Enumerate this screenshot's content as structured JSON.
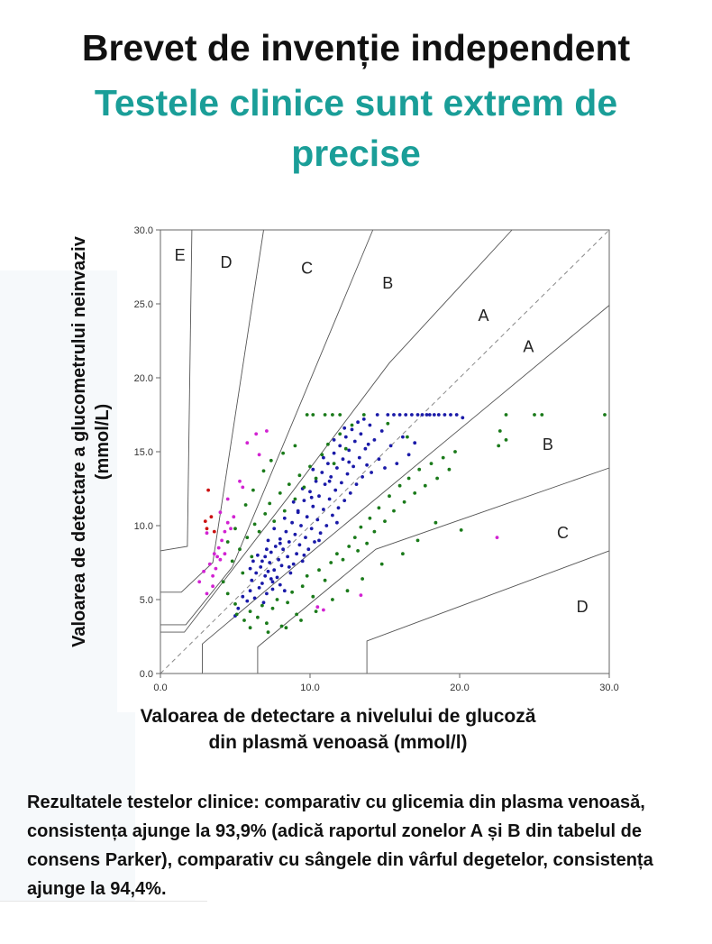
{
  "header": {
    "title": "Brevet de invenție independent",
    "subtitle": "Testele clinice sunt extrem de precise"
  },
  "footnote": "Rezultatele testelor clinice: comparativ cu glicemia din plasma venoasă, consistența ajunge la 93,9% (adică raportul zonelor A și B din tabelul de consens Parker), comparativ cu sângele din vârful degetelor, consistența ajunge la 94,4%.",
  "chart_data": {
    "type": "scatter",
    "title": "",
    "xlabel": "Valoarea de detectare a nivelului de glucoză din plasmă venoasă (mmol/l)",
    "ylabel": "Valoarea de detectare a glucometrului neinvaziv (mmol/L)",
    "xlim": [
      0,
      30
    ],
    "ylim": [
      0,
      30
    ],
    "x_ticks": [
      "0.0",
      "10.0",
      "20.0",
      "30.0"
    ],
    "y_ticks": [
      "0.0",
      "5.0",
      "10.0",
      "15.0",
      "20.0",
      "25.0",
      "30.0"
    ],
    "grid": false,
    "legend": "none",
    "identity_line": true,
    "zone_labels": [
      {
        "text": "E",
        "x": 1.3,
        "y": 28.3
      },
      {
        "text": "D",
        "x": 4.4,
        "y": 27.8
      },
      {
        "text": "C",
        "x": 9.8,
        "y": 27.4
      },
      {
        "text": "B",
        "x": 15.2,
        "y": 26.4
      },
      {
        "text": "A",
        "x": 21.6,
        "y": 24.2
      },
      {
        "text": "A",
        "x": 24.6,
        "y": 22.1
      },
      {
        "text": "B",
        "x": 25.9,
        "y": 15.5
      },
      {
        "text": "C",
        "x": 26.9,
        "y": 9.5
      },
      {
        "text": "D",
        "x": 28.2,
        "y": 4.5
      }
    ],
    "zone_boundaries": [
      [
        [
          0,
          8.3
        ],
        [
          1.8,
          8.6
        ],
        [
          2.1,
          30
        ]
      ],
      [
        [
          0,
          5.5
        ],
        [
          1.4,
          5.5
        ],
        [
          3.5,
          7.5
        ],
        [
          6.9,
          30
        ]
      ],
      [
        [
          0,
          3.3
        ],
        [
          1.7,
          3.3
        ],
        [
          4.8,
          7.2
        ],
        [
          14.2,
          30
        ]
      ],
      [
        [
          0,
          2.8
        ],
        [
          1.6,
          2.8
        ],
        [
          8.6,
          12.0
        ],
        [
          15.3,
          21.0
        ],
        [
          23.5,
          30
        ]
      ],
      [
        [
          0,
          0
        ],
        [
          30,
          30
        ]
      ],
      [
        [
          2.8,
          0
        ],
        [
          2.8,
          2.0
        ],
        [
          10.2,
          8.3
        ],
        [
          30,
          24.9
        ]
      ],
      [
        [
          6.5,
          0
        ],
        [
          6.5,
          1.8
        ],
        [
          14.4,
          8.4
        ],
        [
          30,
          13.9
        ]
      ],
      [
        [
          13.8,
          0
        ],
        [
          13.8,
          2.2
        ],
        [
          30,
          8.3
        ]
      ]
    ],
    "series": [
      {
        "color": "#1a1aa8",
        "points": [
          [
            5.0,
            3.9
          ],
          [
            5.2,
            4.4
          ],
          [
            5.5,
            5.2
          ],
          [
            5.8,
            4.9
          ],
          [
            6.0,
            5.6
          ],
          [
            6.1,
            6.3
          ],
          [
            6.3,
            5.1
          ],
          [
            6.4,
            6.8
          ],
          [
            6.6,
            5.8
          ],
          [
            6.7,
            7.2
          ],
          [
            6.8,
            6.1
          ],
          [
            6.9,
            4.8
          ],
          [
            7.0,
            6.6
          ],
          [
            7.0,
            7.9
          ],
          [
            7.1,
            5.4
          ],
          [
            7.2,
            6.9
          ],
          [
            7.3,
            7.5
          ],
          [
            7.4,
            8.2
          ],
          [
            7.5,
            6.2
          ],
          [
            7.5,
            5.7
          ],
          [
            7.6,
            7.0
          ],
          [
            7.7,
            8.6
          ],
          [
            7.8,
            6.5
          ],
          [
            7.9,
            7.7
          ],
          [
            8.0,
            9.1
          ],
          [
            8.0,
            6.0
          ],
          [
            8.1,
            7.3
          ],
          [
            8.2,
            8.4
          ],
          [
            8.3,
            5.6
          ],
          [
            8.4,
            9.6
          ],
          [
            8.5,
            7.9
          ],
          [
            8.6,
            8.9
          ],
          [
            8.7,
            6.8
          ],
          [
            8.8,
            10.2
          ],
          [
            8.9,
            7.4
          ],
          [
            9.0,
            9.4
          ],
          [
            9.1,
            8.1
          ],
          [
            9.2,
            11.0
          ],
          [
            9.3,
            8.7
          ],
          [
            9.4,
            10.0
          ],
          [
            9.5,
            7.6
          ],
          [
            9.6,
            11.7
          ],
          [
            9.7,
            9.2
          ],
          [
            9.8,
            10.6
          ],
          [
            9.9,
            8.4
          ],
          [
            10.0,
            12.3
          ],
          [
            10.1,
            9.8
          ],
          [
            10.2,
            11.3
          ],
          [
            10.3,
            8.9
          ],
          [
            10.4,
            13.0
          ],
          [
            10.5,
            10.4
          ],
          [
            10.6,
            12.0
          ],
          [
            10.7,
            9.5
          ],
          [
            10.8,
            13.6
          ],
          [
            10.9,
            11.1
          ],
          [
            11.0,
            12.8
          ],
          [
            11.1,
            10.0
          ],
          [
            11.2,
            14.2
          ],
          [
            11.3,
            11.8
          ],
          [
            11.4,
            13.3
          ],
          [
            11.5,
            10.7
          ],
          [
            11.6,
            14.9
          ],
          [
            11.7,
            12.4
          ],
          [
            11.8,
            13.9
          ],
          [
            11.9,
            11.2
          ],
          [
            12.0,
            15.4
          ],
          [
            12.1,
            12.9
          ],
          [
            12.2,
            14.5
          ],
          [
            12.3,
            11.7
          ],
          [
            12.4,
            16.0
          ],
          [
            12.5,
            13.5
          ],
          [
            12.6,
            15.1
          ],
          [
            12.7,
            12.2
          ],
          [
            12.8,
            16.5
          ],
          [
            12.9,
            14.0
          ],
          [
            13.0,
            15.7
          ],
          [
            13.1,
            12.8
          ],
          [
            13.2,
            17.0
          ],
          [
            13.3,
            14.6
          ],
          [
            13.4,
            16.2
          ],
          [
            13.5,
            13.3
          ],
          [
            13.6,
            17.2
          ],
          [
            13.7,
            15.2
          ],
          [
            13.8,
            14.1
          ],
          [
            14.0,
            16.8
          ],
          [
            14.1,
            13.6
          ],
          [
            14.3,
            15.8
          ],
          [
            14.5,
            17.5
          ],
          [
            14.6,
            14.5
          ],
          [
            14.8,
            16.4
          ],
          [
            15.0,
            13.9
          ],
          [
            15.2,
            17.5
          ],
          [
            15.4,
            15.4
          ],
          [
            15.6,
            17.5
          ],
          [
            15.8,
            14.2
          ],
          [
            16.0,
            17.5
          ],
          [
            16.2,
            16.0
          ],
          [
            16.4,
            17.5
          ],
          [
            16.6,
            14.8
          ],
          [
            16.8,
            17.5
          ],
          [
            17.0,
            15.6
          ],
          [
            17.2,
            17.5
          ],
          [
            17.5,
            17.5
          ],
          [
            17.8,
            17.5
          ],
          [
            18.0,
            17.5
          ],
          [
            18.3,
            17.5
          ],
          [
            18.6,
            17.5
          ],
          [
            19.0,
            17.5
          ],
          [
            19.4,
            17.5
          ],
          [
            19.8,
            17.5
          ],
          [
            20.2,
            17.3
          ],
          [
            6.2,
            7.6
          ],
          [
            6.5,
            8.0
          ],
          [
            7.2,
            9.0
          ],
          [
            7.6,
            9.8
          ],
          [
            8.3,
            10.5
          ],
          [
            8.9,
            11.6
          ],
          [
            9.5,
            12.5
          ],
          [
            10.2,
            13.8
          ],
          [
            10.9,
            14.6
          ],
          [
            11.6,
            15.8
          ],
          [
            12.3,
            16.6
          ],
          [
            7.1,
            8.4
          ],
          [
            8.0,
            8.8
          ],
          [
            9.2,
            10.9
          ],
          [
            10.1,
            11.9
          ],
          [
            11.3,
            13.0
          ],
          [
            12.6,
            14.3
          ],
          [
            13.9,
            15.5
          ],
          [
            6.0,
            7.1
          ],
          [
            6.8,
            7.6
          ],
          [
            7.4,
            6.4
          ],
          [
            8.6,
            7.2
          ],
          [
            9.6,
            8.0
          ],
          [
            10.6,
            9.0
          ],
          [
            11.8,
            10.2
          ]
        ]
      },
      {
        "color": "#1a7a1a",
        "points": [
          [
            4.2,
            6.2
          ],
          [
            4.5,
            5.4
          ],
          [
            4.8,
            7.6
          ],
          [
            5.0,
            4.7
          ],
          [
            5.3,
            8.4
          ],
          [
            5.5,
            6.8
          ],
          [
            5.6,
            3.6
          ],
          [
            5.8,
            9.2
          ],
          [
            6.0,
            4.2
          ],
          [
            6.1,
            7.9
          ],
          [
            6.3,
            10.1
          ],
          [
            6.5,
            3.8
          ],
          [
            6.6,
            9.6
          ],
          [
            6.8,
            4.6
          ],
          [
            7.0,
            10.8
          ],
          [
            7.1,
            3.4
          ],
          [
            7.3,
            11.5
          ],
          [
            7.5,
            4.4
          ],
          [
            7.6,
            10.3
          ],
          [
            7.8,
            5.0
          ],
          [
            8.0,
            12.2
          ],
          [
            8.1,
            3.2
          ],
          [
            8.3,
            11.0
          ],
          [
            8.5,
            4.8
          ],
          [
            8.6,
            12.8
          ],
          [
            8.8,
            5.5
          ],
          [
            9.0,
            11.8
          ],
          [
            9.1,
            4.0
          ],
          [
            9.3,
            13.4
          ],
          [
            9.5,
            5.9
          ],
          [
            9.6,
            12.6
          ],
          [
            9.8,
            6.6
          ],
          [
            10.0,
            14.0
          ],
          [
            10.2,
            5.2
          ],
          [
            10.4,
            13.2
          ],
          [
            10.6,
            7.0
          ],
          [
            10.8,
            14.8
          ],
          [
            11.0,
            6.3
          ],
          [
            11.2,
            15.5
          ],
          [
            11.4,
            7.5
          ],
          [
            11.6,
            14.2
          ],
          [
            11.8,
            8.1
          ],
          [
            12.0,
            16.2
          ],
          [
            12.2,
            7.7
          ],
          [
            12.4,
            15.2
          ],
          [
            12.6,
            8.6
          ],
          [
            12.8,
            16.8
          ],
          [
            13.0,
            9.2
          ],
          [
            13.2,
            8.3
          ],
          [
            13.4,
            9.9
          ],
          [
            13.6,
            17.5
          ],
          [
            13.8,
            8.8
          ],
          [
            14.0,
            10.5
          ],
          [
            14.3,
            9.6
          ],
          [
            14.6,
            11.2
          ],
          [
            15.0,
            10.3
          ],
          [
            15.3,
            12.0
          ],
          [
            15.6,
            11.0
          ],
          [
            16.0,
            12.7
          ],
          [
            16.3,
            11.6
          ],
          [
            16.6,
            13.2
          ],
          [
            17.0,
            12.2
          ],
          [
            17.3,
            13.8
          ],
          [
            17.7,
            12.7
          ],
          [
            18.1,
            14.2
          ],
          [
            18.5,
            13.2
          ],
          [
            18.9,
            14.6
          ],
          [
            19.3,
            13.8
          ],
          [
            19.7,
            15.0
          ],
          [
            20.1,
            9.7
          ],
          [
            23.1,
            17.5
          ],
          [
            23.1,
            15.8
          ],
          [
            25.0,
            17.5
          ],
          [
            25.5,
            17.5
          ],
          [
            29.7,
            17.5
          ],
          [
            22.6,
            15.4
          ],
          [
            22.7,
            16.4
          ],
          [
            9.8,
            17.5
          ],
          [
            10.2,
            17.5
          ],
          [
            11.0,
            17.5
          ],
          [
            11.5,
            17.5
          ],
          [
            12.0,
            17.5
          ],
          [
            15.2,
            16.9
          ],
          [
            16.5,
            16.0
          ],
          [
            4.5,
            8.9
          ],
          [
            5.0,
            9.8
          ],
          [
            5.7,
            11.4
          ],
          [
            6.2,
            12.4
          ],
          [
            6.9,
            13.7
          ],
          [
            7.4,
            14.4
          ],
          [
            8.2,
            14.9
          ],
          [
            9.0,
            15.4
          ],
          [
            5.1,
            4.0
          ],
          [
            6.0,
            3.1
          ],
          [
            7.2,
            2.8
          ],
          [
            8.4,
            3.1
          ],
          [
            9.4,
            3.6
          ],
          [
            10.4,
            4.2
          ],
          [
            11.5,
            5.0
          ],
          [
            12.5,
            5.6
          ],
          [
            13.5,
            6.4
          ],
          [
            14.8,
            7.4
          ],
          [
            16.2,
            8.1
          ],
          [
            17.2,
            9.0
          ],
          [
            18.4,
            10.2
          ]
        ]
      },
      {
        "color": "#d222d2",
        "points": [
          [
            2.6,
            6.2
          ],
          [
            2.9,
            6.9
          ],
          [
            3.1,
            5.4
          ],
          [
            3.3,
            7.4
          ],
          [
            3.5,
            6.6
          ],
          [
            3.6,
            8.1
          ],
          [
            3.7,
            7.1
          ],
          [
            3.9,
            8.5
          ],
          [
            4.0,
            7.7
          ],
          [
            4.1,
            9.0
          ],
          [
            4.3,
            9.6
          ],
          [
            4.5,
            10.2
          ],
          [
            4.7,
            9.8
          ],
          [
            4.9,
            10.6
          ],
          [
            5.3,
            13.0
          ],
          [
            5.5,
            12.6
          ],
          [
            5.8,
            15.6
          ],
          [
            6.4,
            16.2
          ],
          [
            6.6,
            14.8
          ],
          [
            7.1,
            16.4
          ],
          [
            4.0,
            10.9
          ],
          [
            4.5,
            11.8
          ],
          [
            3.1,
            9.5
          ],
          [
            10.5,
            4.5
          ],
          [
            10.9,
            4.3
          ],
          [
            13.4,
            5.3
          ],
          [
            22.5,
            9.2
          ],
          [
            3.8,
            7.9
          ],
          [
            4.3,
            8.1
          ],
          [
            3.5,
            5.9
          ]
        ]
      },
      {
        "color": "#cc1111",
        "points": [
          [
            3.0,
            10.3
          ],
          [
            3.1,
            9.8
          ],
          [
            3.2,
            12.4
          ],
          [
            3.4,
            10.6
          ],
          [
            3.6,
            9.6
          ]
        ]
      }
    ]
  }
}
